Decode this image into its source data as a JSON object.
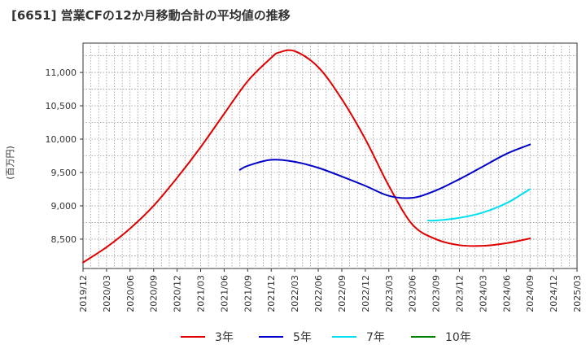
{
  "chart_data": {
    "type": "line",
    "title": "[6651]  営業CFの12か月移動合計の平均値の推移",
    "ylabel": "(百万円)",
    "xlabel": "",
    "x_ticks": [
      "2019/12",
      "2020/03",
      "2020/06",
      "2020/09",
      "2020/12",
      "2021/03",
      "2021/06",
      "2021/09",
      "2021/12",
      "2022/03",
      "2022/06",
      "2022/09",
      "2022/12",
      "2023/03",
      "2023/06",
      "2023/09",
      "2023/12",
      "2024/03",
      "2024/06",
      "2024/09",
      "2024/12",
      "2025/03"
    ],
    "y_ticks": [
      8500,
      9000,
      9500,
      10000,
      10500,
      11000
    ],
    "y_tick_labels": [
      "8,500",
      "9,000",
      "9,500",
      "10,000",
      "10,500",
      "11,000"
    ],
    "ylim": [
      8060,
      11440
    ],
    "grid": true,
    "legend_position": "bottom",
    "series": [
      {
        "name": "3年",
        "color": "#e00000",
        "x": [
          "2019/12",
          "2020/03",
          "2020/06",
          "2020/09",
          "2020/12",
          "2021/03",
          "2021/06",
          "2021/09",
          "2021/12",
          "2022/01",
          "2022/03",
          "2022/06",
          "2022/09",
          "2022/12",
          "2023/03",
          "2023/06",
          "2023/09",
          "2023/12",
          "2024/03",
          "2024/06",
          "2024/09"
        ],
        "values": [
          8150,
          8380,
          8660,
          9000,
          9420,
          9880,
          10380,
          10870,
          11220,
          11300,
          11320,
          11080,
          10600,
          10000,
          9300,
          8720,
          8500,
          8410,
          8400,
          8440,
          8510
        ]
      },
      {
        "name": "5年",
        "color": "#0000c8",
        "x": [
          "2021/08",
          "2021/09",
          "2021/12",
          "2022/03",
          "2022/06",
          "2022/09",
          "2022/12",
          "2023/03",
          "2023/06",
          "2023/09",
          "2023/12",
          "2024/03",
          "2024/06",
          "2024/09"
        ],
        "values": [
          9540,
          9600,
          9690,
          9660,
          9570,
          9440,
          9300,
          9150,
          9120,
          9230,
          9400,
          9590,
          9780,
          9920
        ]
      },
      {
        "name": "7年",
        "color": "#00e0f0",
        "x": [
          "2023/08",
          "2023/09",
          "2023/12",
          "2024/03",
          "2024/06",
          "2024/09"
        ],
        "values": [
          8780,
          8780,
          8820,
          8900,
          9040,
          9250
        ]
      },
      {
        "name": "10年",
        "color": "#008000",
        "x": [],
        "values": []
      }
    ]
  }
}
